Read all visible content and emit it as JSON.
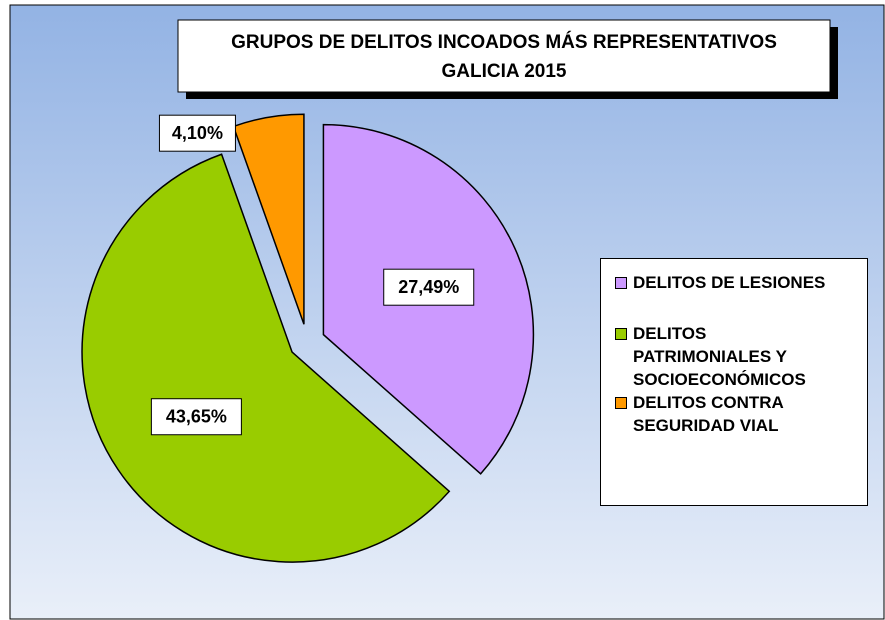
{
  "chart_data": {
    "type": "pie",
    "title": "GRUPOS DE DELITOS INCOADOS MÁS REPRESENTATIVOS",
    "subtitle": "GALICIA 2015",
    "categories": [
      "DELITOS DE LESIONES",
      "DELITOS PATRIMONIALES Y SOCIOECONÓMICOS",
      "DELITOS CONTRA SEGURIDAD VIAL"
    ],
    "values": [
      27.49,
      43.65,
      4.1
    ],
    "value_labels": [
      "27,49%",
      "43,65%",
      "4,10%"
    ],
    "colors": [
      "#cc99ff",
      "#99cc00",
      "#ff9900"
    ],
    "legend": "right"
  }
}
